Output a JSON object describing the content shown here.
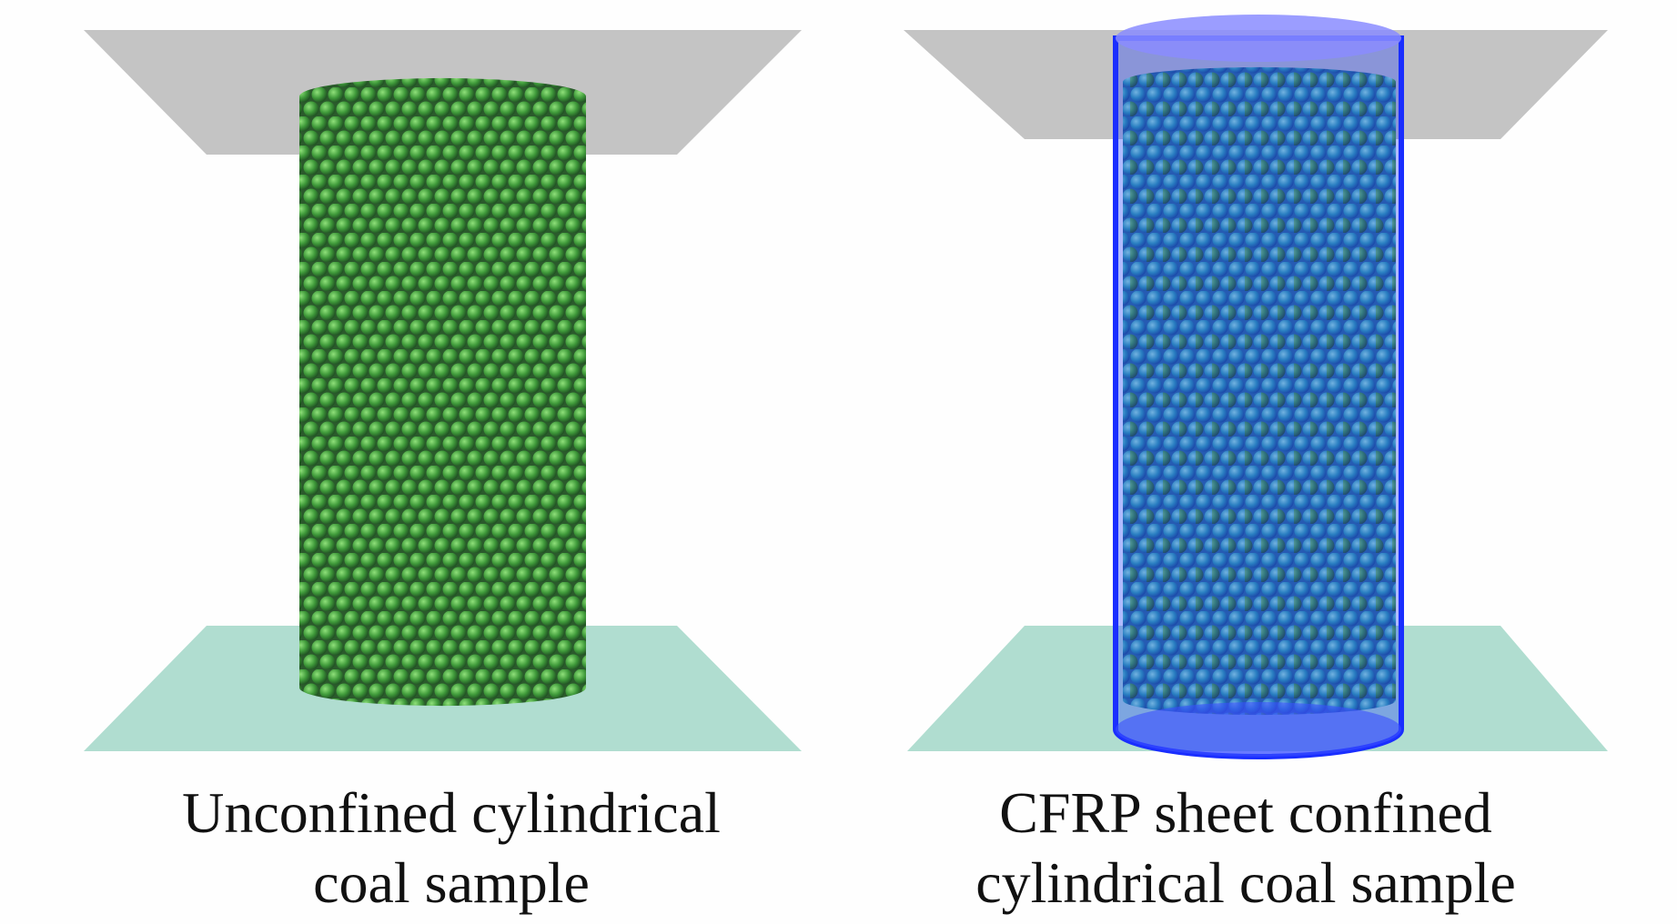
{
  "panels": [
    {
      "caption": [
        "Unconfined cylindrical",
        "coal sample"
      ]
    },
    {
      "caption": [
        "CFRP sheet confined",
        "cylindrical coal sample"
      ]
    }
  ]
}
